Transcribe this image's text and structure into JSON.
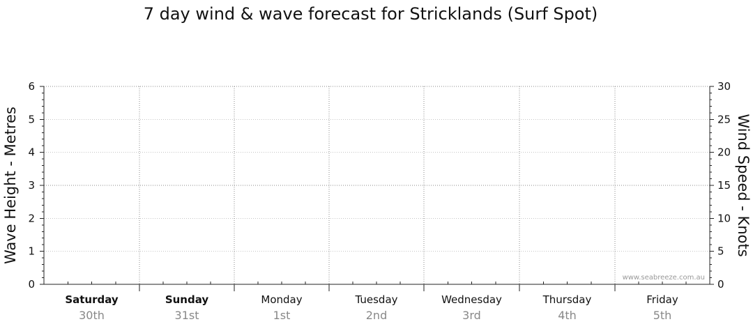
{
  "chart_data": {
    "type": "line",
    "title": "7 day wind & wave forecast for Stricklands (Surf Spot)",
    "y_left": {
      "label": "Wave Height - Metres",
      "ylim": [
        0,
        6
      ],
      "ticks": [
        "0",
        "1",
        "2",
        "3",
        "4",
        "5",
        "6"
      ]
    },
    "y_right": {
      "label": "Wind Speed - Knots",
      "ylim": [
        0,
        30
      ],
      "ticks": [
        "0",
        "5",
        "10",
        "15",
        "20",
        "25",
        "30"
      ]
    },
    "days": [
      {
        "name": "Saturday",
        "date": "30th",
        "bold": true
      },
      {
        "name": "Sunday",
        "date": "31st",
        "bold": true
      },
      {
        "name": "Monday",
        "date": "1st",
        "bold": false
      },
      {
        "name": "Tuesday",
        "date": "2nd",
        "bold": false
      },
      {
        "name": "Wednesday",
        "date": "3rd",
        "bold": false
      },
      {
        "name": "Thursday",
        "date": "4th",
        "bold": false
      },
      {
        "name": "Friday",
        "date": "5th",
        "bold": false
      }
    ],
    "series": [],
    "grid": true,
    "watermark": "www.seabreeze.com.au"
  }
}
